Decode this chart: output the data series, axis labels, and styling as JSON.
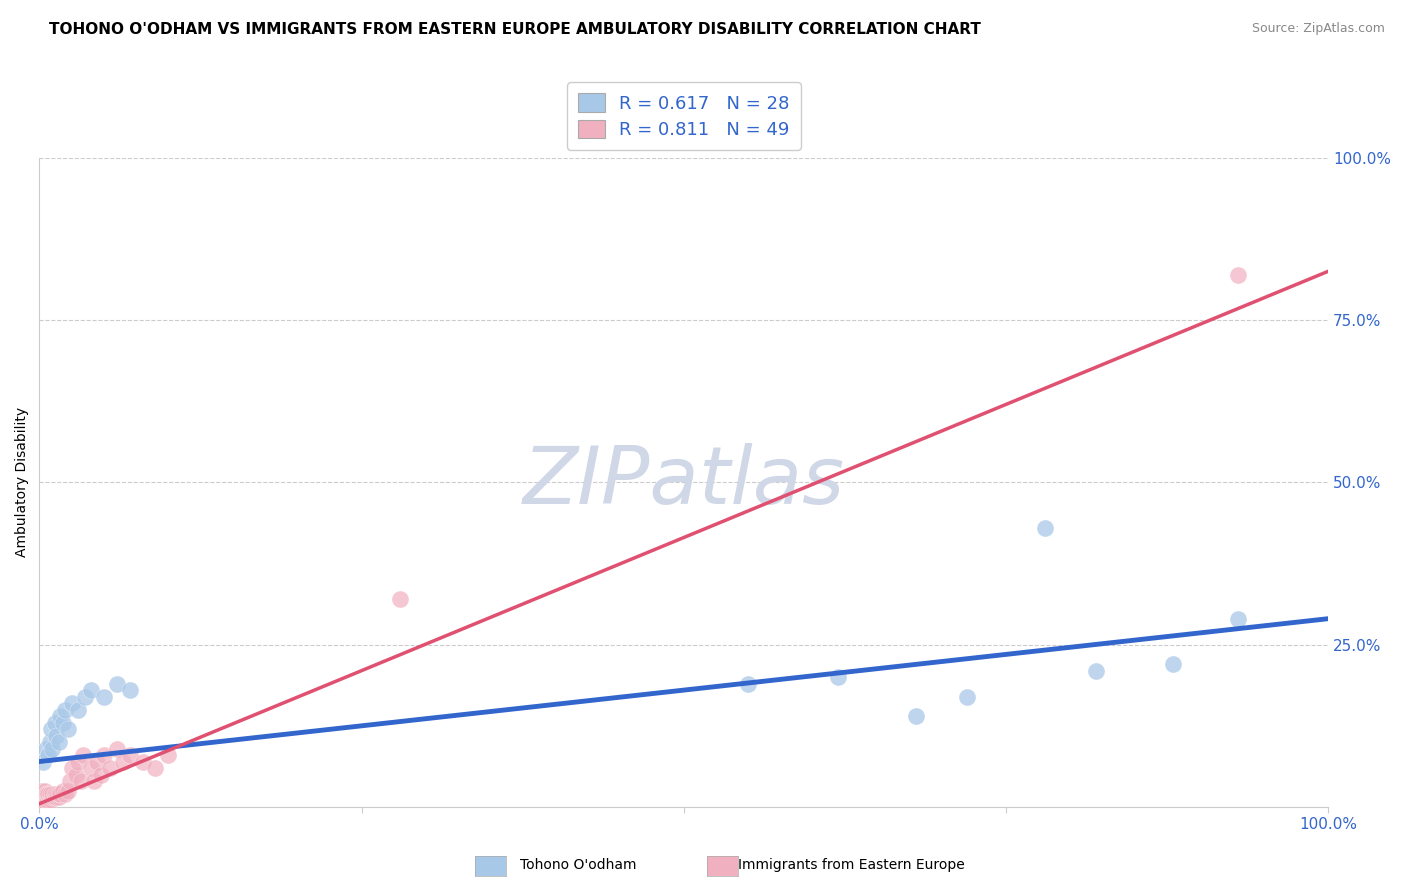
{
  "title": "TOHONO O'ODHAM VS IMMIGRANTS FROM EASTERN EUROPE AMBULATORY DISABILITY CORRELATION CHART",
  "source": "Source: ZipAtlas.com",
  "ylabel": "Ambulatory Disability",
  "xlim": [
    0,
    1
  ],
  "ylim": [
    0,
    1
  ],
  "grid_color": "#cccccc",
  "blue_color": "#a8c8e8",
  "pink_color": "#f0b0c0",
  "blue_line_color": "#3366cc",
  "pink_line_color": "#e05070",
  "watermark": "ZIPatlas",
  "watermark_color": "#d0d8e8",
  "legend_R_blue": "R = 0.617",
  "legend_N_blue": "N = 28",
  "legend_R_pink": "R = 0.811",
  "legend_N_pink": "N = 49",
  "blue_label": "Tohono O'odham",
  "pink_label": "Immigrants from Eastern Europe",
  "blue_scatter_x": [
    0.003,
    0.005,
    0.007,
    0.008,
    0.009,
    0.01,
    0.012,
    0.013,
    0.015,
    0.016,
    0.018,
    0.02,
    0.022,
    0.025,
    0.03,
    0.035,
    0.04,
    0.05,
    0.06,
    0.07,
    0.55,
    0.62,
    0.68,
    0.72,
    0.78,
    0.82,
    0.88,
    0.93
  ],
  "blue_scatter_y": [
    0.07,
    0.09,
    0.08,
    0.1,
    0.12,
    0.09,
    0.13,
    0.11,
    0.1,
    0.14,
    0.13,
    0.15,
    0.12,
    0.16,
    0.15,
    0.17,
    0.18,
    0.17,
    0.19,
    0.18,
    0.19,
    0.2,
    0.14,
    0.17,
    0.43,
    0.21,
    0.22,
    0.29
  ],
  "pink_scatter_x": [
    0.001,
    0.001,
    0.002,
    0.002,
    0.003,
    0.003,
    0.004,
    0.004,
    0.005,
    0.005,
    0.006,
    0.006,
    0.007,
    0.007,
    0.008,
    0.008,
    0.009,
    0.01,
    0.01,
    0.011,
    0.012,
    0.013,
    0.014,
    0.015,
    0.015,
    0.016,
    0.018,
    0.02,
    0.022,
    0.024,
    0.025,
    0.028,
    0.03,
    0.032,
    0.034,
    0.04,
    0.042,
    0.045,
    0.048,
    0.05,
    0.055,
    0.06,
    0.065,
    0.07,
    0.08,
    0.09,
    0.1,
    0.28,
    0.93
  ],
  "pink_scatter_y": [
    0.01,
    0.02,
    0.015,
    0.025,
    0.01,
    0.02,
    0.015,
    0.025,
    0.01,
    0.02,
    0.015,
    0.02,
    0.01,
    0.02,
    0.015,
    0.02,
    0.01,
    0.015,
    0.02,
    0.015,
    0.02,
    0.015,
    0.02,
    0.015,
    0.02,
    0.02,
    0.025,
    0.02,
    0.025,
    0.04,
    0.06,
    0.05,
    0.07,
    0.04,
    0.08,
    0.06,
    0.04,
    0.07,
    0.05,
    0.08,
    0.06,
    0.09,
    0.07,
    0.08,
    0.07,
    0.06,
    0.08,
    0.32,
    0.82
  ],
  "title_fontsize": 11,
  "axis_label_fontsize": 10,
  "tick_fontsize": 11,
  "legend_fontsize": 13,
  "blue_line_slope": 0.22,
  "blue_line_intercept": 0.07,
  "pink_line_slope": 0.82,
  "pink_line_intercept": 0.005
}
